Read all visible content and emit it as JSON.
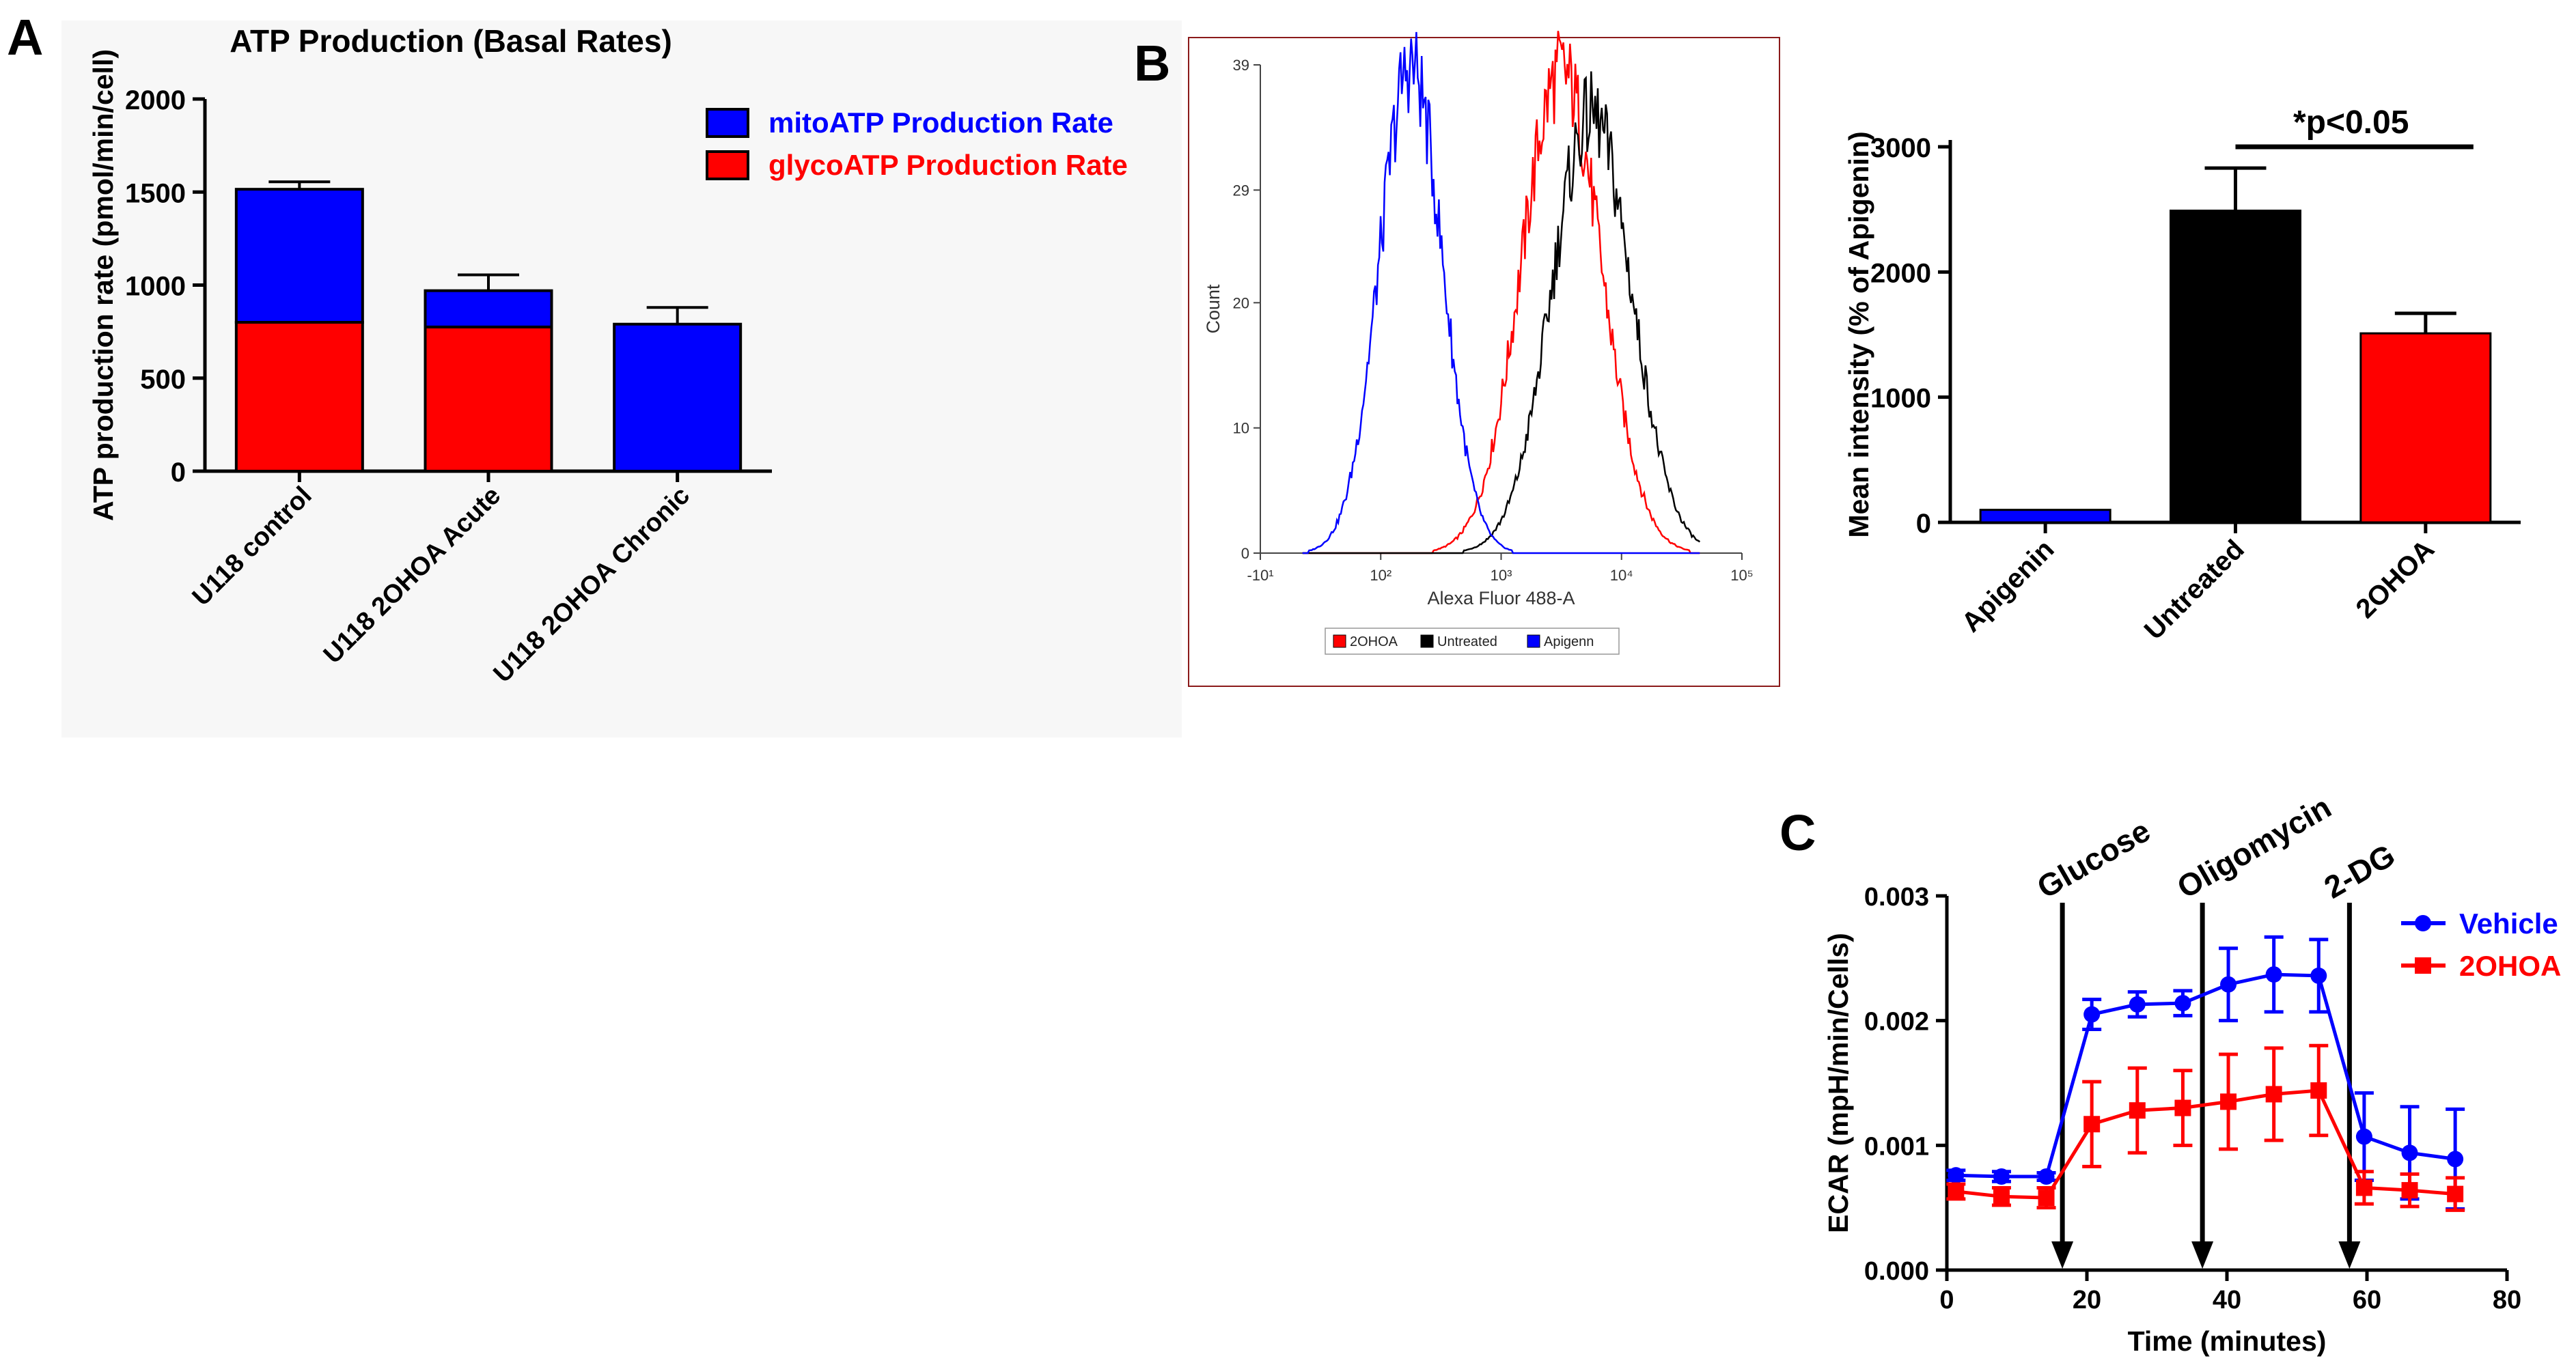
{
  "chart_data": [
    {
      "panel": "A",
      "type": "bar",
      "stacked": true,
      "title": "ATP Production (Basal Rates)",
      "ylabel": "ATP production rate (pmol/min/cell)",
      "xlabel": "",
      "ylim": [
        0,
        2000
      ],
      "yticks": [
        "0",
        "500",
        "1000",
        "1500",
        "2000"
      ],
      "categories": [
        "U118 control",
        "U118 2OHOA Acute",
        "U118 2OHOA Chronic"
      ],
      "series": [
        {
          "name": "glycoATP Production Rate",
          "color": "#ff0000",
          "values": [
            800,
            775,
            0
          ],
          "error": [
            20,
            20,
            0
          ]
        },
        {
          "name": "mitoATP Production Rate",
          "color": "#0000ff",
          "values": [
            715,
            195,
            790
          ],
          "error": [
            40,
            85,
            90
          ]
        }
      ],
      "legend_position": "top-right"
    },
    {
      "panel": "B",
      "type": "area",
      "subtype": "flow cytometry histogram",
      "xlabel": "Alexa Fluor 488-A",
      "ylabel": "Count",
      "xscale": "biexponential",
      "xticks": [
        "-10¹",
        "10²",
        "10³",
        "10⁴",
        "10⁵"
      ],
      "yticks": [
        "0",
        "10",
        "20",
        "29",
        "39"
      ],
      "ylim": [
        0,
        39
      ],
      "x_exponent_range": [
        1,
        5
      ],
      "series": [
        {
          "name": "2OHOA",
          "color": "#ff0000",
          "peak_log10": 3.5,
          "peak_count": 38.5
        },
        {
          "name": "Untreated",
          "color": "#000000",
          "peak_log10": 3.75,
          "peak_count": 35
        },
        {
          "name": "Apigenn",
          "color": "#0000ff",
          "peak_log10": 2.25,
          "peak_count": 39
        }
      ],
      "legend_position": "bottom"
    },
    {
      "panel": "B",
      "type": "bar",
      "ylabel": "Mean intensity (% of Apigenin)",
      "ylim": [
        0,
        3000
      ],
      "yticks": [
        "0",
        "1000",
        "2000",
        "3000"
      ],
      "categories": [
        "Apigenin",
        "Untreated",
        "2OHOA"
      ],
      "values": [
        100,
        2490,
        1510
      ],
      "error": [
        0,
        340,
        160
      ],
      "colors": [
        "#0000ff",
        "#000000",
        "#ff0000"
      ],
      "annotation": "*p<0.05"
    },
    {
      "panel": "C",
      "type": "line",
      "xlabel": "Time (minutes)",
      "ylabel": "ECAR (mpH/min/Cells)",
      "xlim": [
        0,
        80
      ],
      "ylim": [
        0,
        0.003
      ],
      "xticks": [
        "0",
        "20",
        "40",
        "60",
        "80"
      ],
      "yticks": [
        "0.000",
        "0.001",
        "0.002",
        "0.003"
      ],
      "series": [
        {
          "name": "Vehicle",
          "color": "#0000ff",
          "marker": "circle",
          "x": [
            1.3,
            7.8,
            14.2,
            20.7,
            27.2,
            33.7,
            40.2,
            46.7,
            53.1,
            59.6,
            66.1,
            72.6
          ],
          "y": [
            0.00076,
            0.00075,
            0.00075,
            0.00205,
            0.00213,
            0.00214,
            0.00229,
            0.00237,
            0.00236,
            0.00107,
            0.00094,
            0.00089
          ],
          "err": [
            4e-05,
            4e-05,
            3e-05,
            0.00012,
            0.0001,
            0.0001,
            0.00029,
            0.0003,
            0.00029,
            0.00035,
            0.00037,
            0.0004
          ]
        },
        {
          "name": "2OHOA",
          "color": "#ff0000",
          "marker": "square",
          "x": [
            1.3,
            7.8,
            14.2,
            20.7,
            27.2,
            33.7,
            40.2,
            46.7,
            53.1,
            59.6,
            66.1,
            72.6
          ],
          "y": [
            0.00063,
            0.00059,
            0.00058,
            0.00117,
            0.00128,
            0.0013,
            0.00135,
            0.00141,
            0.00144,
            0.00066,
            0.00064,
            0.00061
          ],
          "err": [
            6e-05,
            7e-05,
            8e-05,
            0.00034,
            0.00034,
            0.0003,
            0.00038,
            0.00037,
            0.00036,
            0.00013,
            0.00013,
            0.00013
          ]
        }
      ],
      "injections": [
        {
          "label": "Glucose",
          "x": 16.5
        },
        {
          "label": "Oligomycin",
          "x": 36.5
        },
        {
          "label": "2-DG",
          "x": 57.5
        }
      ],
      "legend_position": "top-right"
    }
  ],
  "panel_labels": {
    "a": "A",
    "b": "B",
    "c": "C"
  }
}
